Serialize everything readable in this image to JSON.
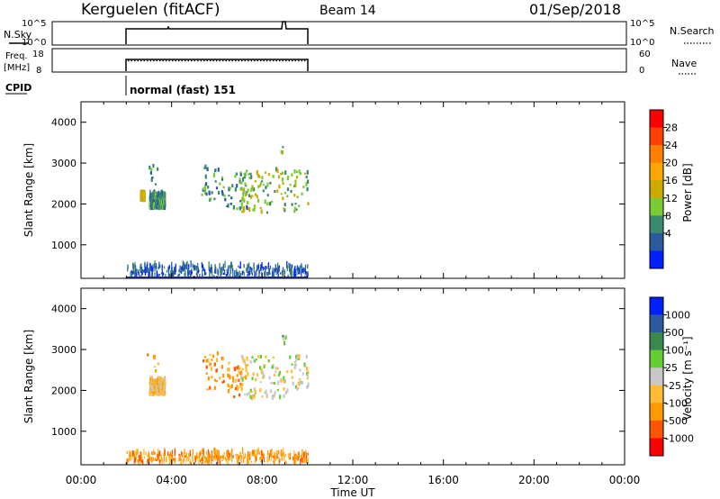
{
  "header": {
    "station": "Kerguelen (fitACF)",
    "beam": "Beam 14",
    "date": "01/Sep/2018"
  },
  "panels": {
    "nsky": {
      "label": "N.Sky",
      "left_ticks": [
        "10^5",
        "10^0"
      ],
      "right_ticks": [
        "10^5",
        "10^0"
      ],
      "right_label": "N.Search"
    },
    "freq": {
      "label_line1": "Freq.",
      "label_line2": "[MHz]",
      "left_ticks": [
        "18",
        "8"
      ],
      "right_ticks": [
        "60",
        "0"
      ],
      "right_label": "Nave"
    },
    "cpid": {
      "label": "CPID",
      "value": "normal (fast) 151"
    }
  },
  "colorbars": {
    "power": {
      "label": "Power [dB]",
      "ticks": [
        "28",
        "24",
        "20",
        "16",
        "12",
        "8",
        "4"
      ],
      "colors": [
        "#ff0000",
        "#ff4000",
        "#ff8000",
        "#ffa500",
        "#ccaa00",
        "#7bcc33",
        "#3a8a70",
        "#2a5aa0",
        "#0020ff"
      ]
    },
    "velocity": {
      "label": "Velocity [m s⁻¹]",
      "ticks": [
        "1000",
        "500",
        "100",
        "25",
        "-25",
        "-100",
        "-500",
        "-1000"
      ],
      "colors": [
        "#0020ff",
        "#2a5aa0",
        "#3a8a50",
        "#66cc33",
        "#c8c8c8",
        "#ffbb33",
        "#ff9900",
        "#ff5500",
        "#ff0000"
      ]
    }
  },
  "chart_data": {
    "type": "heatmap",
    "xlabel": "Time UT",
    "ylabel": "Slant Range [km]",
    "x_ticks": [
      "00:00",
      "04:00",
      "08:00",
      "12:00",
      "16:00",
      "20:00",
      "00:00"
    ],
    "y_ticks": [
      "4000",
      "3000",
      "2000",
      "1000"
    ],
    "xlim_hours": [
      0,
      24
    ],
    "ylim_km": [
      180,
      4500
    ],
    "data_interval_hours": [
      2.0,
      10.0
    ],
    "series": [
      {
        "name": "Power",
        "clusters": [
          {
            "t": [
              2.9,
              3.4
            ],
            "r": [
              2400,
              2900
            ],
            "dominant": "8"
          },
          {
            "t": [
              3.0,
              3.7
            ],
            "r": [
              1850,
              2200
            ],
            "dominant": "8"
          },
          {
            "t": [
              2.6,
              2.8
            ],
            "r": [
              2050,
              2200
            ],
            "dominant": "16"
          },
          {
            "t": [
              5.3,
              6.3
            ],
            "r": [
              2000,
              2900
            ],
            "dominant": "8"
          },
          {
            "t": [
              6.3,
              7.3
            ],
            "r": [
              1800,
              2700
            ],
            "dominant": "8"
          },
          {
            "t": [
              7.0,
              10.0
            ],
            "r": [
              1750,
              2800
            ],
            "dominant": "12"
          },
          {
            "t": [
              8.8,
              9.0
            ],
            "r": [
              3000,
              3500
            ],
            "dominant": "12"
          },
          {
            "t": [
              2.0,
              10.0
            ],
            "r": [
              180,
              450
            ],
            "dominant": "4"
          }
        ]
      },
      {
        "name": "Velocity",
        "clusters": [
          {
            "t": [
              2.9,
              3.4
            ],
            "r": [
              2400,
              2900
            ],
            "dominant": "-100"
          },
          {
            "t": [
              3.0,
              3.7
            ],
            "r": [
              1850,
              2200
            ],
            "dominant": "-25"
          },
          {
            "t": [
              5.3,
              6.3
            ],
            "r": [
              2000,
              2900
            ],
            "dominant": "-100"
          },
          {
            "t": [
              6.3,
              7.3
            ],
            "r": [
              1800,
              2700
            ],
            "dominant": "-100"
          },
          {
            "t": [
              7.0,
              10.0
            ],
            "r": [
              1750,
              2800
            ],
            "dominant": "25"
          },
          {
            "t": [
              8.8,
              9.0
            ],
            "r": [
              3000,
              3500
            ],
            "dominant": "100"
          },
          {
            "t": [
              2.0,
              10.0
            ],
            "r": [
              180,
              450
            ],
            "dominant": "-100"
          }
        ]
      }
    ]
  }
}
